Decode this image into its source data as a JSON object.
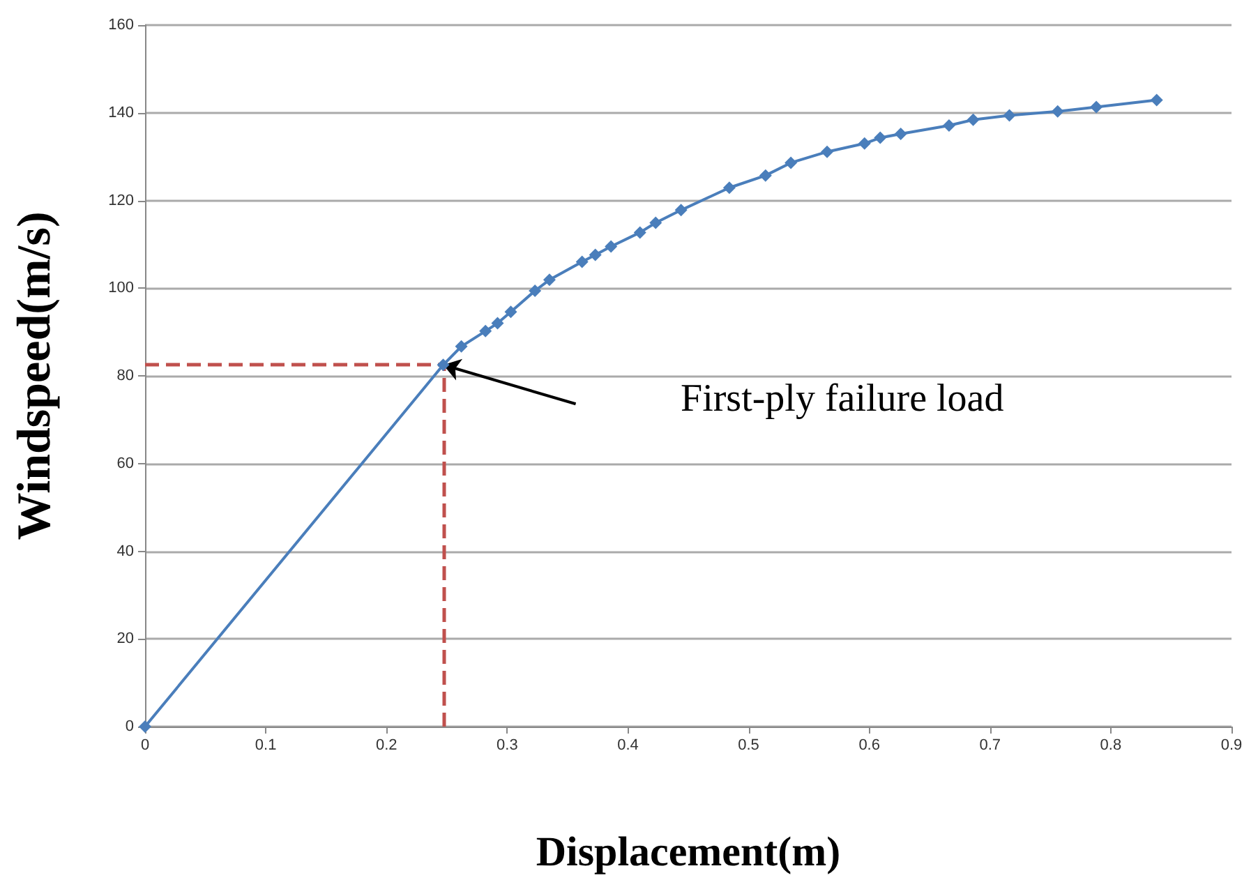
{
  "chart_data": {
    "type": "line",
    "xlabel": "Displacement(m)",
    "ylabel": "Windspeed(m/s)",
    "x": [
      0,
      0.247,
      0.262,
      0.282,
      0.292,
      0.303,
      0.323,
      0.335,
      0.362,
      0.373,
      0.386,
      0.41,
      0.423,
      0.444,
      0.484,
      0.514,
      0.535,
      0.565,
      0.596,
      0.609,
      0.626,
      0.666,
      0.686,
      0.716,
      0.756,
      0.788,
      0.838
    ],
    "series": [
      {
        "color": "#4a7ebb",
        "values": [
          0,
          82.5,
          86.7,
          90.2,
          92,
          94.6,
          99.4,
          101.9,
          106,
          107.6,
          109.5,
          112.7,
          114.9,
          117.8,
          122.9,
          125.7,
          128.6,
          131.1,
          133,
          134.3,
          135.2,
          137.1,
          138.4,
          139.4,
          140.3,
          141.3,
          142.9
        ]
      }
    ],
    "xlim": [
      0,
      0.9
    ],
    "xticks": [
      0,
      0.1,
      0.2,
      0.3,
      0.4,
      0.5,
      0.6,
      0.7,
      0.8,
      0.9
    ],
    "ylim": [
      0,
      160
    ],
    "yticks": [
      0,
      20,
      40,
      60,
      80,
      100,
      120,
      140,
      160
    ],
    "grid": "y",
    "marker": "diamond",
    "line_style": "solid",
    "ref_lines": [
      {
        "axis": "x",
        "value": 0.247,
        "color": "#c0504d",
        "line_style": "dashed"
      },
      {
        "axis": "y",
        "value": 82.5,
        "color": "#c0504d",
        "line_style": "dashed"
      }
    ],
    "annotations": [
      "First-ply failure load"
    ]
  }
}
